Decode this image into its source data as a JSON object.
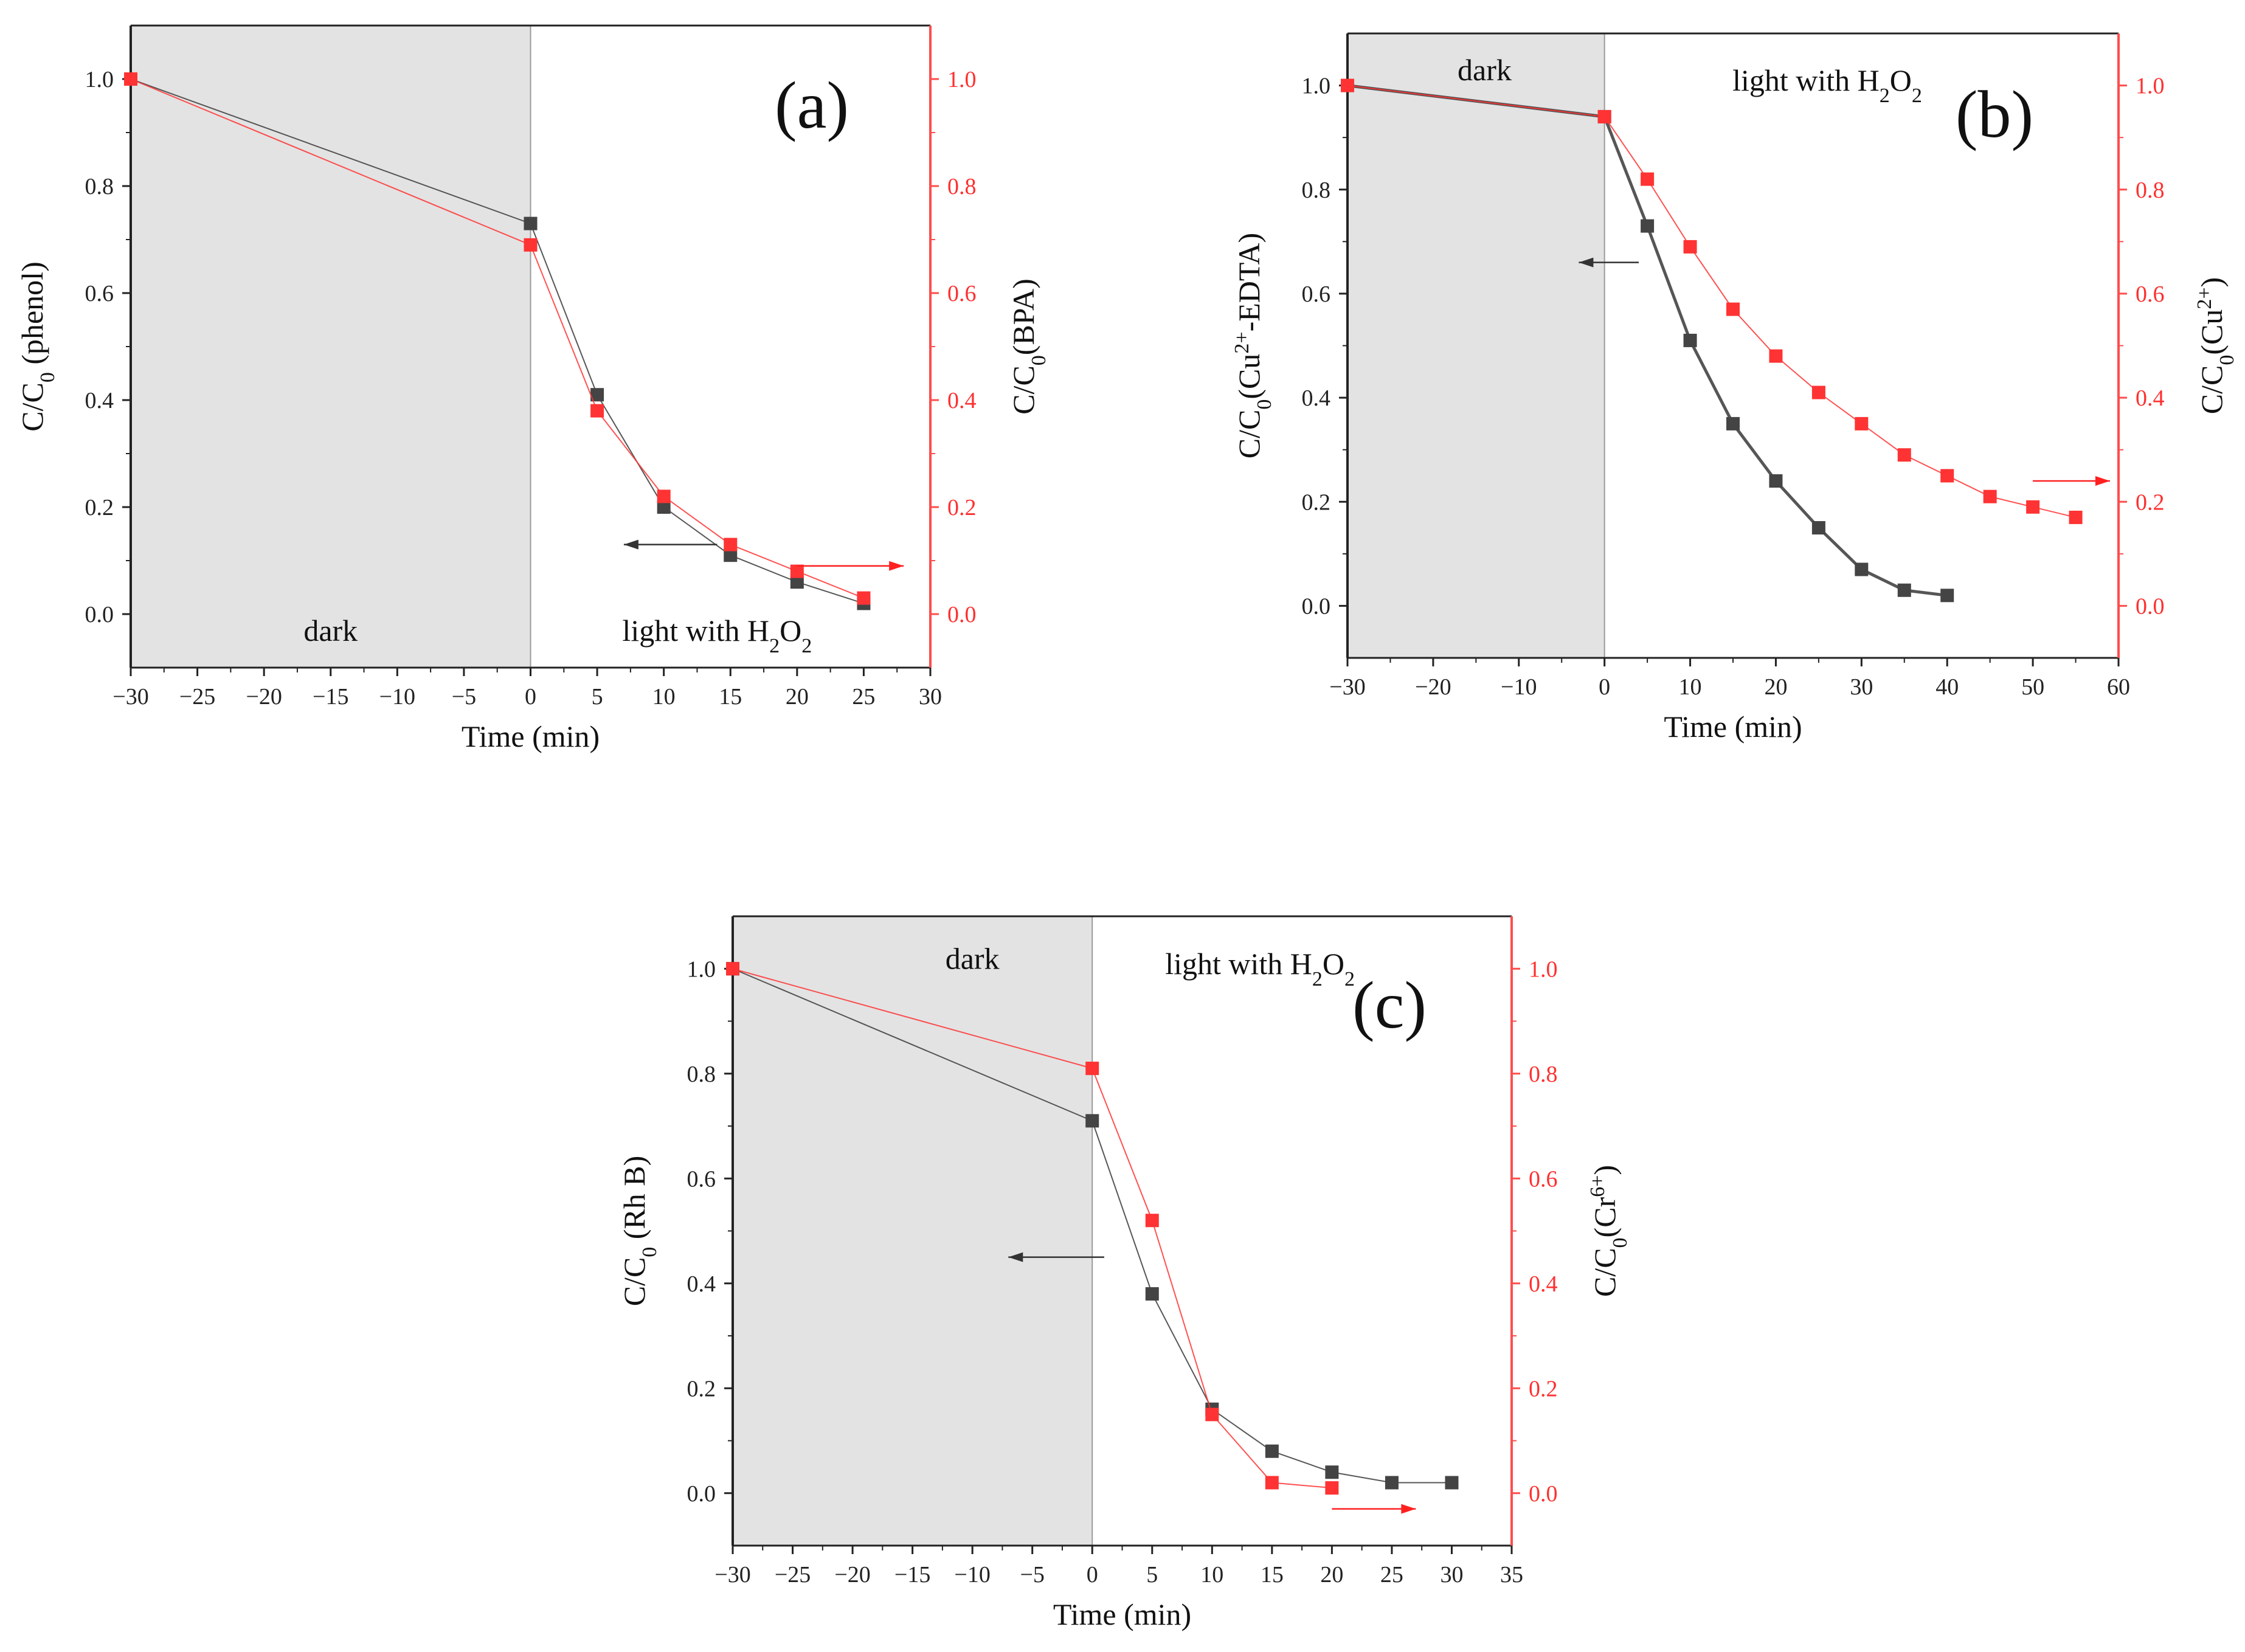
{
  "colors": {
    "black_series": "#444444",
    "red_series": "#ff3333",
    "red_axis": "#ff4d4d",
    "dark_region": "#e3e3e3"
  },
  "chart_data": [
    {
      "type": "line",
      "panel_label": "(a)",
      "xlabel": "Time (min)",
      "ylabel_left": {
        "base": "C/C",
        "sub": "0",
        "tail": " (phenol)"
      },
      "ylabel_right": {
        "base": "C/C",
        "sub": "0",
        "tail": "(BPA)"
      },
      "xlim": [
        -30,
        30
      ],
      "ylim": [
        -0.1,
        1.1
      ],
      "x_ticks": [
        -30,
        -25,
        -20,
        -15,
        -10,
        -5,
        0,
        5,
        10,
        15,
        20,
        25,
        30
      ],
      "y_ticks": [
        0.0,
        0.2,
        0.4,
        0.6,
        0.8,
        1.0
      ],
      "dark_region": [
        -30,
        0
      ],
      "dark_label": "dark",
      "light_label": {
        "text": "light with H",
        "sub1": "2",
        "mid": "O",
        "sub2": "2"
      },
      "series": [
        {
          "name": "phenol",
          "axis": "left",
          "color": "black",
          "x": [
            -30,
            0,
            5,
            10,
            15,
            20,
            25
          ],
          "y": [
            1.0,
            0.73,
            0.41,
            0.2,
            0.11,
            0.06,
            0.02
          ]
        },
        {
          "name": "BPA",
          "axis": "right",
          "color": "red",
          "x": [
            -30,
            0,
            5,
            10,
            15,
            20,
            25
          ],
          "y": [
            1.0,
            0.69,
            0.38,
            0.22,
            0.13,
            0.08,
            0.03
          ]
        }
      ],
      "arrows": [
        {
          "series": "black",
          "from": [
            14,
            0.13
          ],
          "to": [
            7,
            0.13
          ]
        },
        {
          "series": "red",
          "from": [
            20,
            0.09
          ],
          "to": [
            28,
            0.09
          ]
        }
      ]
    },
    {
      "type": "line",
      "panel_label": "(b)",
      "xlabel": "Time (min)",
      "ylabel_left": {
        "base": "C/C",
        "sub": "0",
        "tail": "(Cu",
        "sup": "2+",
        "tail2": "-EDTA)"
      },
      "ylabel_right": {
        "base": "C/C",
        "sub": "0",
        "tail": "(Cu",
        "sup": "2+",
        "tail2": ")"
      },
      "xlim": [
        -30,
        60
      ],
      "ylim": [
        -0.1,
        1.1
      ],
      "x_ticks": [
        -30,
        -20,
        -10,
        0,
        10,
        20,
        30,
        40,
        50,
        60
      ],
      "y_ticks": [
        0.0,
        0.2,
        0.4,
        0.6,
        0.8,
        1.0
      ],
      "dark_region": [
        -30,
        0
      ],
      "dark_label": "dark",
      "light_label": {
        "text": "light with H",
        "sub1": "2",
        "mid": "O",
        "sub2": "2"
      },
      "series": [
        {
          "name": "Cu2+-EDTA",
          "axis": "left",
          "color": "black",
          "x": [
            -30,
            0,
            5,
            10,
            15,
            20,
            25,
            30,
            35,
            40
          ],
          "y": [
            1.0,
            0.94,
            0.73,
            0.51,
            0.35,
            0.24,
            0.15,
            0.07,
            0.03,
            0.02
          ]
        },
        {
          "name": "Cu2+",
          "axis": "right",
          "color": "red",
          "x": [
            -30,
            0,
            5,
            10,
            15,
            20,
            25,
            30,
            35,
            40,
            45,
            50,
            55
          ],
          "y": [
            1.0,
            0.94,
            0.82,
            0.69,
            0.57,
            0.48,
            0.41,
            0.35,
            0.29,
            0.25,
            0.21,
            0.19,
            0.17
          ]
        }
      ],
      "arrows": [
        {
          "series": "black",
          "from": [
            4,
            0.66
          ],
          "to": [
            -3,
            0.66
          ]
        },
        {
          "series": "red",
          "from": [
            50,
            0.24
          ],
          "to": [
            59,
            0.24
          ]
        }
      ]
    },
    {
      "type": "line",
      "panel_label": "(c)",
      "xlabel": "Time (min)",
      "ylabel_left": {
        "base": "C/C",
        "sub": "0",
        "tail": " (Rh B)"
      },
      "ylabel_right": {
        "base": "C/C",
        "sub": "0",
        "tail": "(Cr",
        "sup": "6+",
        "tail2": ")"
      },
      "xlim": [
        -30,
        35
      ],
      "ylim": [
        -0.1,
        1.1
      ],
      "x_ticks": [
        -30,
        -25,
        -20,
        -15,
        -10,
        -5,
        0,
        5,
        10,
        15,
        20,
        25,
        30,
        35
      ],
      "y_ticks": [
        0.0,
        0.2,
        0.4,
        0.6,
        0.8,
        1.0
      ],
      "dark_region": [
        -30,
        0
      ],
      "dark_label": "dark",
      "light_label": {
        "text": "light with H",
        "sub1": "2",
        "mid": "O",
        "sub2": "2"
      },
      "series": [
        {
          "name": "Rh B",
          "axis": "left",
          "color": "black",
          "x": [
            -30,
            0,
            5,
            10,
            15,
            20,
            25,
            30
          ],
          "y": [
            1.0,
            0.71,
            0.38,
            0.16,
            0.08,
            0.04,
            0.02,
            0.02
          ]
        },
        {
          "name": "Cr6+",
          "axis": "right",
          "color": "red",
          "x": [
            -30,
            0,
            5,
            10,
            15,
            20
          ],
          "y": [
            1.0,
            0.81,
            0.52,
            0.15,
            0.02,
            0.01
          ]
        }
      ],
      "arrows": [
        {
          "series": "black",
          "from": [
            1,
            0.45
          ],
          "to": [
            -7,
            0.45
          ]
        },
        {
          "series": "red",
          "from": [
            20,
            -0.03
          ],
          "to": [
            27,
            -0.03
          ]
        }
      ]
    }
  ]
}
